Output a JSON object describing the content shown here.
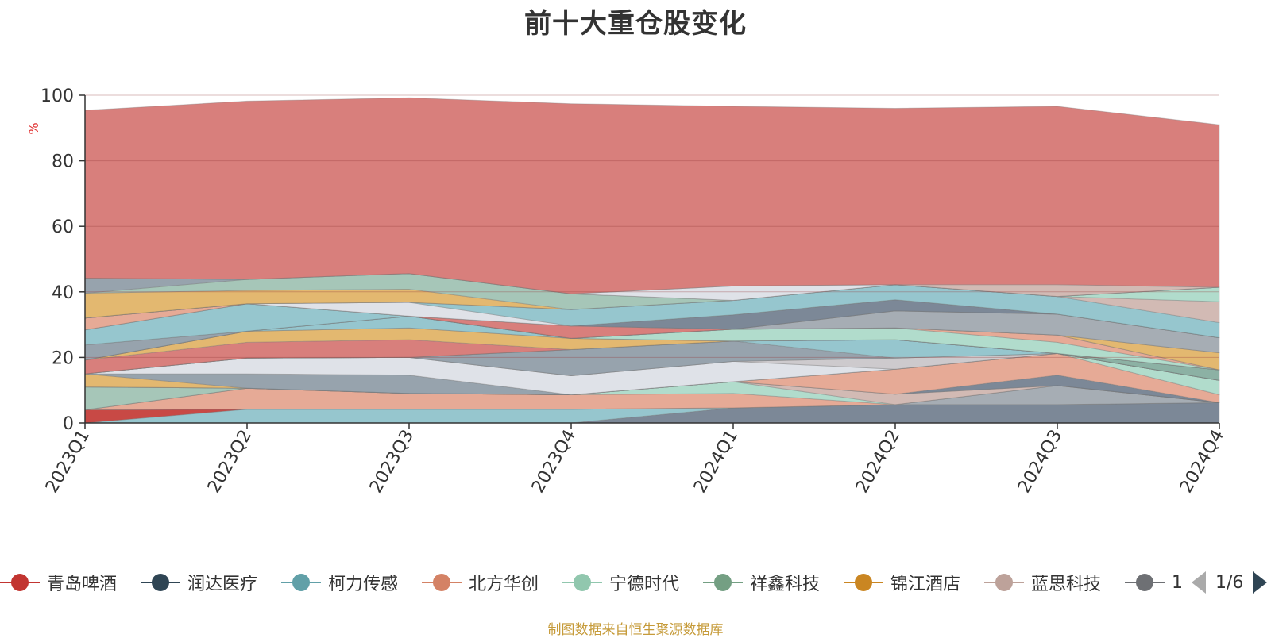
{
  "chart_data": {
    "type": "area",
    "stacked": true,
    "title": "前十大重仓股变化",
    "ylabel": "%",
    "ylim": [
      0,
      100
    ],
    "yticks": [
      0,
      20,
      40,
      60,
      80,
      100
    ],
    "grid": true,
    "legend_position": "bottom",
    "x": [
      "2023Q1",
      "2023Q2",
      "2023Q3",
      "2023Q4",
      "2024Q1",
      "2024Q2",
      "2024Q3",
      "2024Q4"
    ],
    "series": [
      {
        "color": "#6e7b8c",
        "values": [
          0,
          0,
          0,
          0,
          4.6,
          5.6,
          5.6,
          6.2
        ]
      },
      {
        "color": "#8bc0c9",
        "values": [
          0,
          4.2,
          4.2,
          4.2,
          0,
          0,
          0,
          0
        ]
      },
      {
        "color": "#c23531",
        "values": [
          4.0,
          0,
          0,
          0,
          0,
          0,
          0,
          0
        ]
      },
      {
        "color": "#9ca4ac",
        "values": [
          0,
          0,
          0,
          0,
          0,
          0,
          5.8,
          0
        ]
      },
      {
        "color": "#e3a18b",
        "values": [
          0,
          6.4,
          4.8,
          4.4,
          4.4,
          0,
          0,
          0
        ]
      },
      {
        "color": "#a8d8c6",
        "values": [
          0,
          0,
          0,
          0,
          3.6,
          0,
          0,
          0
        ]
      },
      {
        "color": "#cdb3ac",
        "values": [
          0,
          0,
          0,
          0,
          0,
          3.2,
          0,
          0
        ]
      },
      {
        "color": "#9cc0b0",
        "values": [
          7.0,
          0,
          0,
          0,
          0,
          0,
          0,
          0
        ]
      },
      {
        "color": "#6e7b8c",
        "values": [
          0,
          0,
          0,
          0,
          0,
          0,
          3.2,
          0
        ]
      },
      {
        "color": "#e3a18b",
        "values": [
          0,
          0,
          0,
          0,
          0,
          7.6,
          6.6,
          2.4
        ]
      },
      {
        "color": "#a8d8c6",
        "values": [
          0,
          0,
          0,
          0,
          0,
          0,
          0,
          4.4
        ]
      },
      {
        "color": "#e0b060",
        "values": [
          4.0,
          0,
          0,
          0,
          0,
          0,
          0,
          0
        ]
      },
      {
        "color": "#8c99a4",
        "values": [
          0,
          4.4,
          5.6,
          0,
          0,
          0,
          0,
          0
        ]
      },
      {
        "color": "#dcdfe6",
        "values": [
          0,
          4.8,
          5.4,
          5.8,
          6.2,
          0,
          0,
          0
        ]
      },
      {
        "color": "#c8c4c8",
        "values": [
          0,
          0,
          0,
          0,
          0,
          3.4,
          0,
          0
        ]
      },
      {
        "color": "#8bc0c9",
        "values": [
          0,
          0,
          0,
          0,
          0,
          0,
          0,
          0
        ]
      },
      {
        "color": "#8c99a4",
        "values": [
          0,
          0,
          0,
          8.0,
          6.2,
          0,
          0,
          0
        ]
      },
      {
        "color": "#8bc0c9",
        "values": [
          0,
          0,
          0,
          0,
          0,
          5.6,
          0,
          0
        ]
      },
      {
        "color": "#7fa89a",
        "values": [
          0,
          0,
          0,
          0,
          0,
          0,
          0,
          3.2
        ]
      },
      {
        "color": "#a8d8c6",
        "values": [
          0,
          0,
          0,
          0,
          0,
          0,
          0,
          0
        ]
      },
      {
        "color": "#d4716e",
        "values": [
          4.2,
          4.8,
          5.4,
          0,
          0,
          0,
          0,
          0
        ]
      },
      {
        "color": "#e0b060",
        "values": [
          0,
          3.4,
          3.6,
          3.4,
          0,
          0,
          0,
          0
        ]
      },
      {
        "color": "#dcdfe6",
        "values": [
          0,
          0,
          0,
          0,
          0,
          0,
          0,
          0
        ]
      },
      {
        "color": "#8bc0c9",
        "values": [
          0,
          0,
          3.6,
          0,
          0,
          0,
          0,
          0
        ]
      },
      {
        "color": "#a8d8c6",
        "values": [
          0,
          0,
          0,
          0,
          3.6,
          3.6,
          3.4,
          0
        ]
      },
      {
        "color": "#e3a18b",
        "values": [
          0,
          0,
          0,
          0,
          0,
          0,
          2.2,
          0
        ]
      },
      {
        "color": "#8c99a4",
        "values": [
          4.6,
          0,
          0,
          0,
          0,
          0,
          0,
          0
        ]
      },
      {
        "color": "#e0b060",
        "values": [
          0,
          0,
          0,
          0,
          0,
          0,
          0,
          5.2
        ]
      },
      {
        "color": "#8bc0c9",
        "values": [
          4.6,
          8.4,
          0,
          0,
          0,
          0,
          0,
          0
        ]
      },
      {
        "color": "#9ca4ac",
        "values": [
          0,
          0,
          0,
          0,
          0,
          5.2,
          6.4,
          4.6
        ]
      },
      {
        "color": "#d4716e",
        "values": [
          0,
          0,
          0,
          3.8,
          0,
          0,
          0,
          0
        ]
      },
      {
        "color": "#e3a18b",
        "values": [
          3.6,
          0,
          0,
          0,
          0,
          0,
          0,
          0
        ]
      },
      {
        "color": "#6e7b8c",
        "values": [
          0,
          0,
          0,
          0,
          4.4,
          3.4,
          0,
          0
        ]
      },
      {
        "color": "#dcdfe6",
        "values": [
          0,
          0,
          4.2,
          0,
          0,
          0,
          0,
          0
        ]
      },
      {
        "color": "#8bc0c9",
        "values": [
          0,
          0,
          0,
          5.0,
          4.4,
          4.6,
          5.4,
          4.6
        ]
      },
      {
        "color": "#cdb3ac",
        "values": [
          0,
          0,
          0,
          0,
          0,
          0,
          0,
          6.4
        ]
      },
      {
        "color": "#a8d8c6",
        "values": [
          0,
          0,
          0,
          0,
          0,
          0,
          0,
          4.4
        ]
      },
      {
        "color": "#e0b060",
        "values": [
          7.6,
          4.0,
          4.0,
          0,
          0,
          0,
          0,
          0
        ]
      },
      {
        "color": "#9cc0b0",
        "values": [
          0,
          3.4,
          4.8,
          4.8,
          0,
          0,
          0,
          0
        ]
      },
      {
        "color": "#8c99a4",
        "values": [
          4.6,
          0,
          0,
          0,
          0,
          0,
          0,
          0
        ]
      },
      {
        "color": "#dcdfe6",
        "values": [
          0,
          0,
          0,
          0,
          4.4,
          0,
          0,
          0
        ]
      },
      {
        "color": "#cdb3ac",
        "values": [
          0,
          0,
          0,
          0,
          0,
          0,
          3.6,
          0
        ]
      },
      {
        "color": "#d4716e",
        "values": [
          51.2,
          54.4,
          53.6,
          58.0,
          54.8,
          53.8,
          54.4,
          49.6
        ]
      }
    ]
  },
  "legend": {
    "items": [
      {
        "label": "青岛啤酒",
        "color": "#c23531"
      },
      {
        "label": "润达医疗",
        "color": "#2f4554"
      },
      {
        "label": "柯力传感",
        "color": "#61a0a8"
      },
      {
        "label": "北方华创",
        "color": "#d48265"
      },
      {
        "label": "宁德时代",
        "color": "#91c7ae"
      },
      {
        "label": "祥鑫科技",
        "color": "#749f83"
      },
      {
        "label": "锦江酒店",
        "color": "#ca8622"
      },
      {
        "label": "蓝思科技",
        "color": "#bda29a"
      },
      {
        "label": "1",
        "color": "#6e7074"
      }
    ],
    "page_text": "1/6",
    "prev_icon": "triangle-left-icon",
    "next_icon": "triangle-right-icon"
  },
  "footer": {
    "source_text": "制图数据来自恒生聚源数据库"
  }
}
